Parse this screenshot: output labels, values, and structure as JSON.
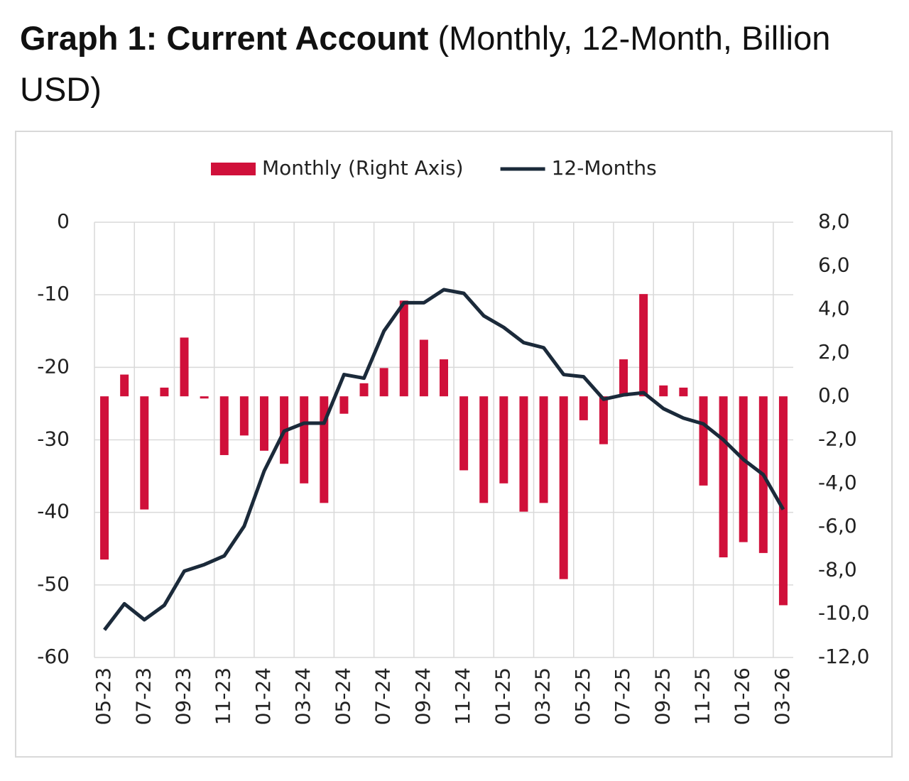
{
  "chart_data": {
    "type": "bar-line",
    "title": "Graph 1: Current Account",
    "subtitle": "(Monthly, 12-Month, Billion USD)",
    "categories": [
      "05-23",
      null,
      "07-23",
      null,
      "09-23",
      null,
      "11-23",
      null,
      "01-24",
      null,
      "03-24",
      null,
      "05-24",
      null,
      "07-24",
      null,
      "09-24",
      null,
      "11-24",
      null,
      "01-25",
      null,
      "03-25",
      null,
      "05-25",
      null,
      "07-25",
      null,
      "09-25",
      null,
      "11-25",
      null,
      "01-26",
      null,
      "03-26"
    ],
    "series": [
      {
        "name": "Monthly (Right Axis)",
        "type": "bar",
        "axis": "y2",
        "color": "#d0103a",
        "values": [
          -7.5,
          1.0,
          -5.2,
          0.4,
          2.7,
          -0.1,
          -2.7,
          -1.8,
          -2.5,
          -3.1,
          -4.0,
          -4.9,
          -0.8,
          0.6,
          1.3,
          4.4,
          2.6,
          1.7,
          -3.4,
          -4.9,
          -4.0,
          -5.3,
          -4.9,
          -8.4,
          -1.1,
          -2.2,
          1.7,
          4.7,
          0.5,
          0.4,
          -4.1,
          -7.4,
          -6.7,
          -7.2,
          -9.6
        ]
      },
      {
        "name": "12-Months",
        "type": "line",
        "axis": "y",
        "color": "#1b2a3a",
        "values": [
          -56.2,
          -52.6,
          -54.8,
          -52.8,
          -48.1,
          -47.2,
          -46.0,
          -41.9,
          -34.3,
          -28.8,
          -27.7,
          -27.7,
          -21.0,
          -21.5,
          -15.0,
          -11.1,
          -11.1,
          -9.3,
          -9.8,
          -12.9,
          -14.5,
          -16.6,
          -17.3,
          -21.0,
          -21.3,
          -24.4,
          -23.8,
          -23.5,
          -25.7,
          -27.0,
          -27.8,
          -30.0,
          -32.7,
          -34.8,
          -39.6
        ]
      }
    ],
    "ylim": [
      -60,
      0
    ],
    "yticks": [
      -60,
      -50,
      -40,
      -30,
      -20,
      -10,
      0
    ],
    "y2lim": [
      -12,
      8
    ],
    "y2ticks": [
      {
        "value": -12,
        "label": "-12,0"
      },
      {
        "value": -10,
        "label": "-10,0"
      },
      {
        "value": -8,
        "label": "-8,0"
      },
      {
        "value": -6,
        "label": "-6,0"
      },
      {
        "value": -4,
        "label": "-4,0"
      },
      {
        "value": -2,
        "label": "-2,0"
      },
      {
        "value": 0,
        "label": "0,0"
      },
      {
        "value": 2,
        "label": "2,0"
      },
      {
        "value": 4,
        "label": "4,0"
      },
      {
        "value": 6,
        "label": "6,0"
      },
      {
        "value": 8,
        "label": "8,0"
      }
    ],
    "grid": true,
    "legend": "top"
  }
}
